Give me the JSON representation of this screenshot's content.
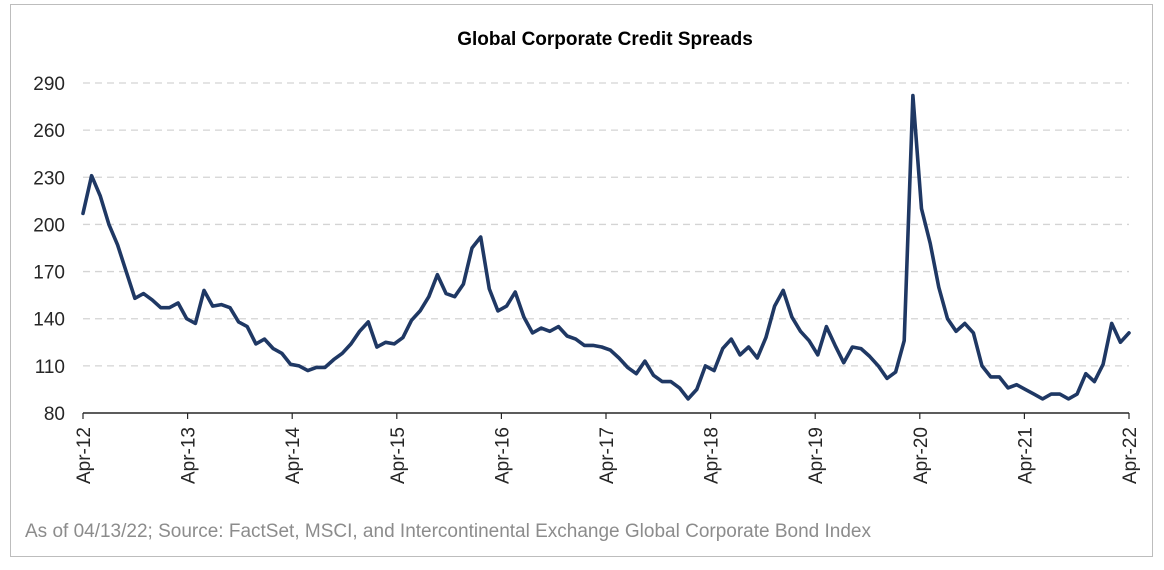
{
  "chart_data": {
    "type": "line",
    "title": "Global Corporate Credit Spreads",
    "xlabel": "",
    "ylabel": "",
    "ylim": [
      80,
      290
    ],
    "yticks": [
      80,
      110,
      140,
      170,
      200,
      230,
      260,
      290
    ],
    "xticks": [
      "Apr-12",
      "Apr-13",
      "Apr-14",
      "Apr-15",
      "Apr-16",
      "Apr-17",
      "Apr-18",
      "Apr-19",
      "Apr-20",
      "Apr-21",
      "Apr-22"
    ],
    "grid": true,
    "line_color": "#1f3864",
    "series": [
      {
        "values": [
          207,
          231,
          218,
          200,
          187,
          170,
          153,
          156,
          152,
          147,
          147,
          150,
          140,
          137,
          158,
          148,
          149,
          147,
          138,
          135,
          124,
          127,
          121,
          118,
          111,
          110,
          107,
          109,
          109,
          114,
          118,
          124,
          132,
          138,
          122,
          125,
          124,
          128,
          139,
          145,
          154,
          168,
          156,
          154,
          162,
          185,
          192,
          159,
          145,
          148,
          157,
          141,
          131,
          134,
          132,
          135,
          129,
          127,
          123,
          123,
          122,
          120,
          115,
          109,
          105,
          113,
          104,
          100,
          100,
          96,
          89,
          95,
          110,
          107,
          121,
          127,
          117,
          122,
          115,
          128,
          148,
          158,
          141,
          132,
          126,
          117,
          135,
          123,
          112,
          122,
          121,
          116,
          110,
          102,
          106,
          126,
          282,
          210,
          188,
          160,
          140,
          132,
          137,
          131,
          110,
          103,
          103,
          96,
          98,
          95,
          92,
          89,
          92,
          92,
          89,
          92,
          105,
          100,
          111,
          137,
          125,
          131
        ]
      }
    ],
    "source": "As of 04/13/22; Source: FactSet, MSCI, and Intercontinental Exchange Global Corporate Bond Index"
  }
}
